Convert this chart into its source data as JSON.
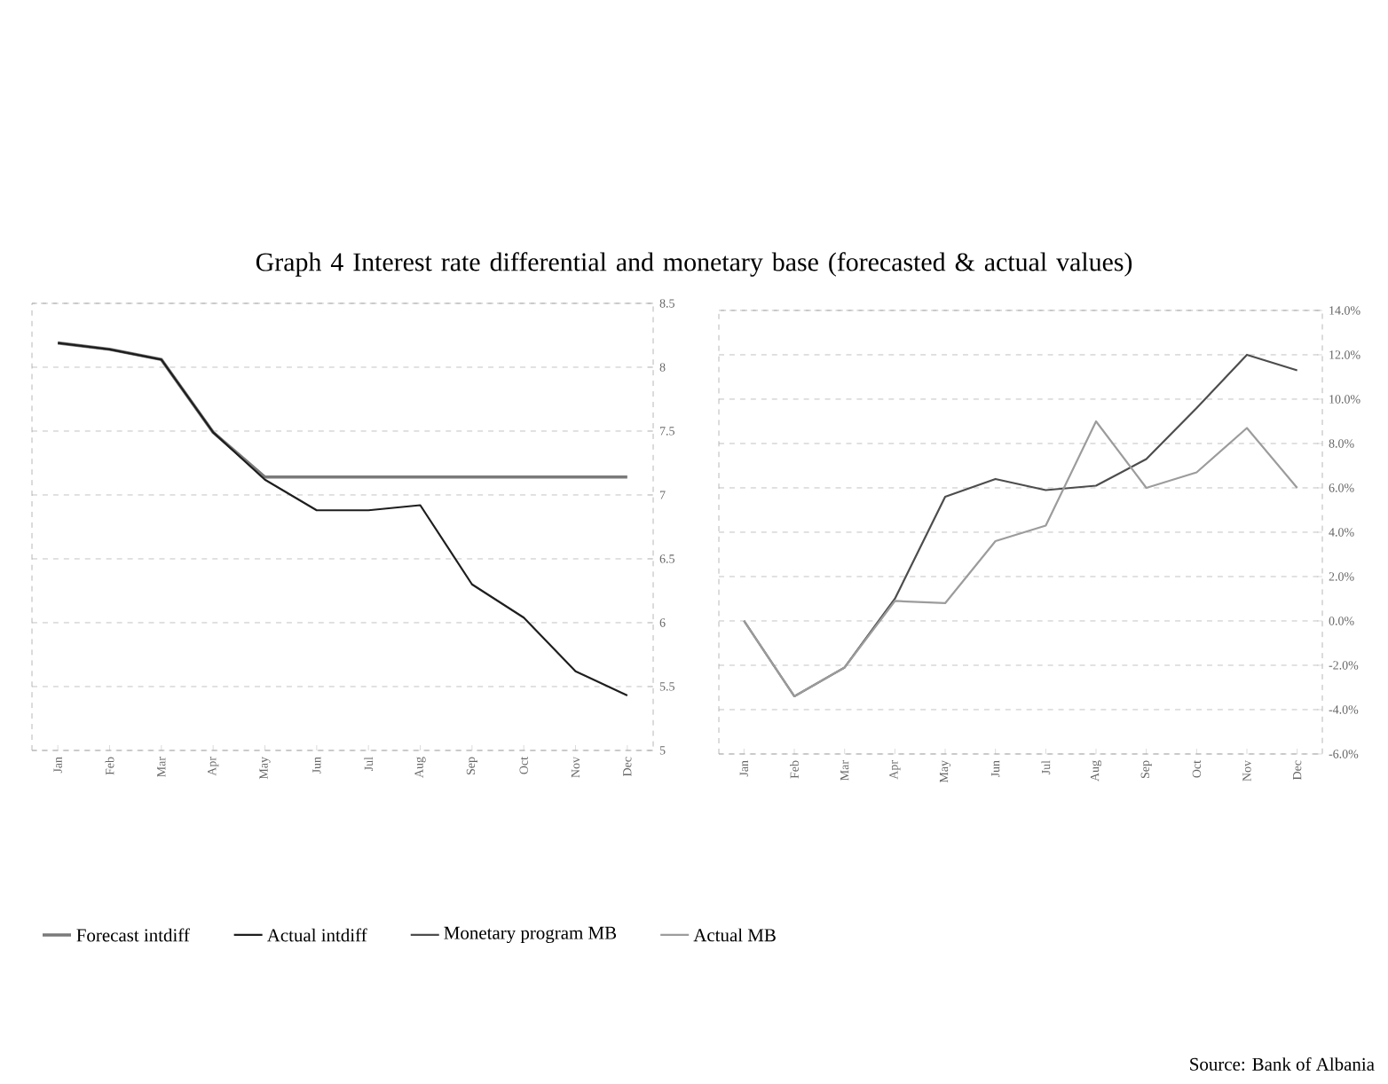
{
  "chart_data": [
    {
      "type": "line",
      "title": "Graph 4 Interest rate differential and monetary base (forecasted & actual values)",
      "categories": [
        "Jan",
        "Feb",
        "Mar",
        "Apr",
        "May",
        "Jun",
        "Jul",
        "Aug",
        "Sep",
        "Oct",
        "Nov",
        "Dec"
      ],
      "series": [
        {
          "name": "Forecast intdiff",
          "color": "#7a7a7a",
          "values": [
            8.19,
            8.14,
            8.06,
            7.49,
            7.14,
            7.14,
            7.14,
            7.14,
            7.14,
            7.14,
            7.14,
            7.14
          ]
        },
        {
          "name": "Actual intdiff",
          "color": "#1e1e1e",
          "values": [
            8.19,
            8.14,
            8.06,
            7.49,
            7.12,
            6.88,
            6.88,
            6.92,
            6.3,
            6.04,
            5.62,
            5.43
          ]
        }
      ],
      "ylim": [
        5,
        8.5
      ],
      "yticks": [
        5,
        5.5,
        6,
        6.5,
        7,
        7.5,
        8,
        8.5
      ],
      "grid": "y",
      "legend": "bottom"
    },
    {
      "type": "line",
      "categories": [
        "Jan",
        "Feb",
        "Mar",
        "Apr",
        "May",
        "Jun",
        "Jul",
        "Aug",
        "Sep",
        "Oct",
        "Nov",
        "Dec"
      ],
      "series": [
        {
          "name": "Monetary program MB",
          "color": "#4d4d4d",
          "values": [
            0,
            -3.4,
            -2.1,
            1.0,
            5.6,
            6.4,
            5.9,
            6.1,
            7.3,
            9.6,
            12.0,
            11.3
          ]
        },
        {
          "name": "Actual MB",
          "color": "#9c9c9c",
          "values": [
            0,
            -3.4,
            -2.1,
            0.9,
            0.8,
            3.6,
            4.3,
            9.0,
            6.0,
            6.7,
            8.7,
            6.0
          ]
        }
      ],
      "ylim": [
        -6,
        14
      ],
      "yticks": [
        {
          "value": -6,
          "label": "-6.0%"
        },
        {
          "value": -4,
          "label": "-4.0%"
        },
        {
          "value": -2,
          "label": "-2.0%"
        },
        {
          "value": 0,
          "label": "0.0%"
        },
        {
          "value": 2,
          "label": "2.0%"
        },
        {
          "value": 4,
          "label": "4.0%"
        },
        {
          "value": 6,
          "label": "6.0%"
        },
        {
          "value": 8,
          "label": "8.0%"
        },
        {
          "value": 10,
          "label": "10.0%"
        },
        {
          "value": 12,
          "label": "12.0%"
        },
        {
          "value": 14,
          "label": "14.0%"
        }
      ],
      "grid": "y",
      "legend": "bottom",
      "annotations": [
        "Source: Bank of Albania"
      ]
    }
  ]
}
